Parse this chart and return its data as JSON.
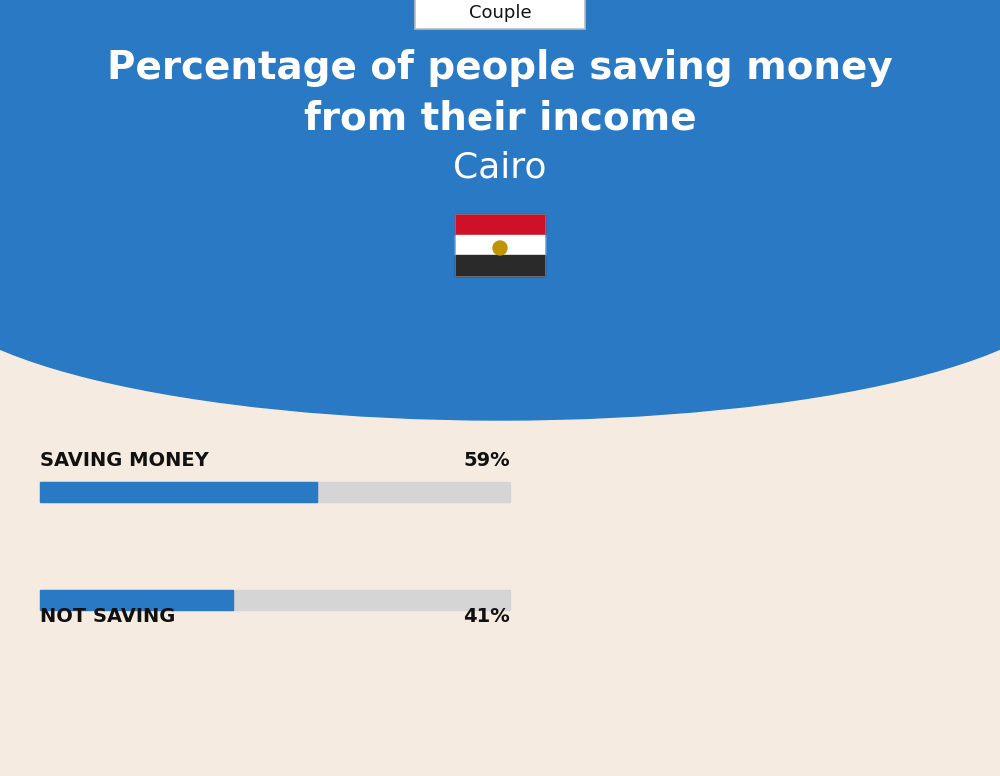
{
  "title_line1": "Percentage of people saving money",
  "title_line2": "from their income",
  "city": "Cairo",
  "tab_label": "Couple",
  "saving_label": "SAVING MONEY",
  "saving_value": 59,
  "saving_pct_text": "59%",
  "not_saving_label": "NOT SAVING",
  "not_saving_value": 41,
  "not_saving_pct_text": "41%",
  "blue_color": "#2979C4",
  "bar_bg_color": "#D5D5D5",
  "bg_bottom_color": "#F5EBE0",
  "text_color_white": "#FFFFFF",
  "text_color_dark": "#111111",
  "tab_border_color": "#BBBBBB",
  "flag_emoji": "🇪🇬",
  "title_fontsize": 28,
  "city_fontsize": 26,
  "label_fontsize": 14,
  "pct_fontsize": 14,
  "fig_width": 10.0,
  "fig_height": 7.76
}
